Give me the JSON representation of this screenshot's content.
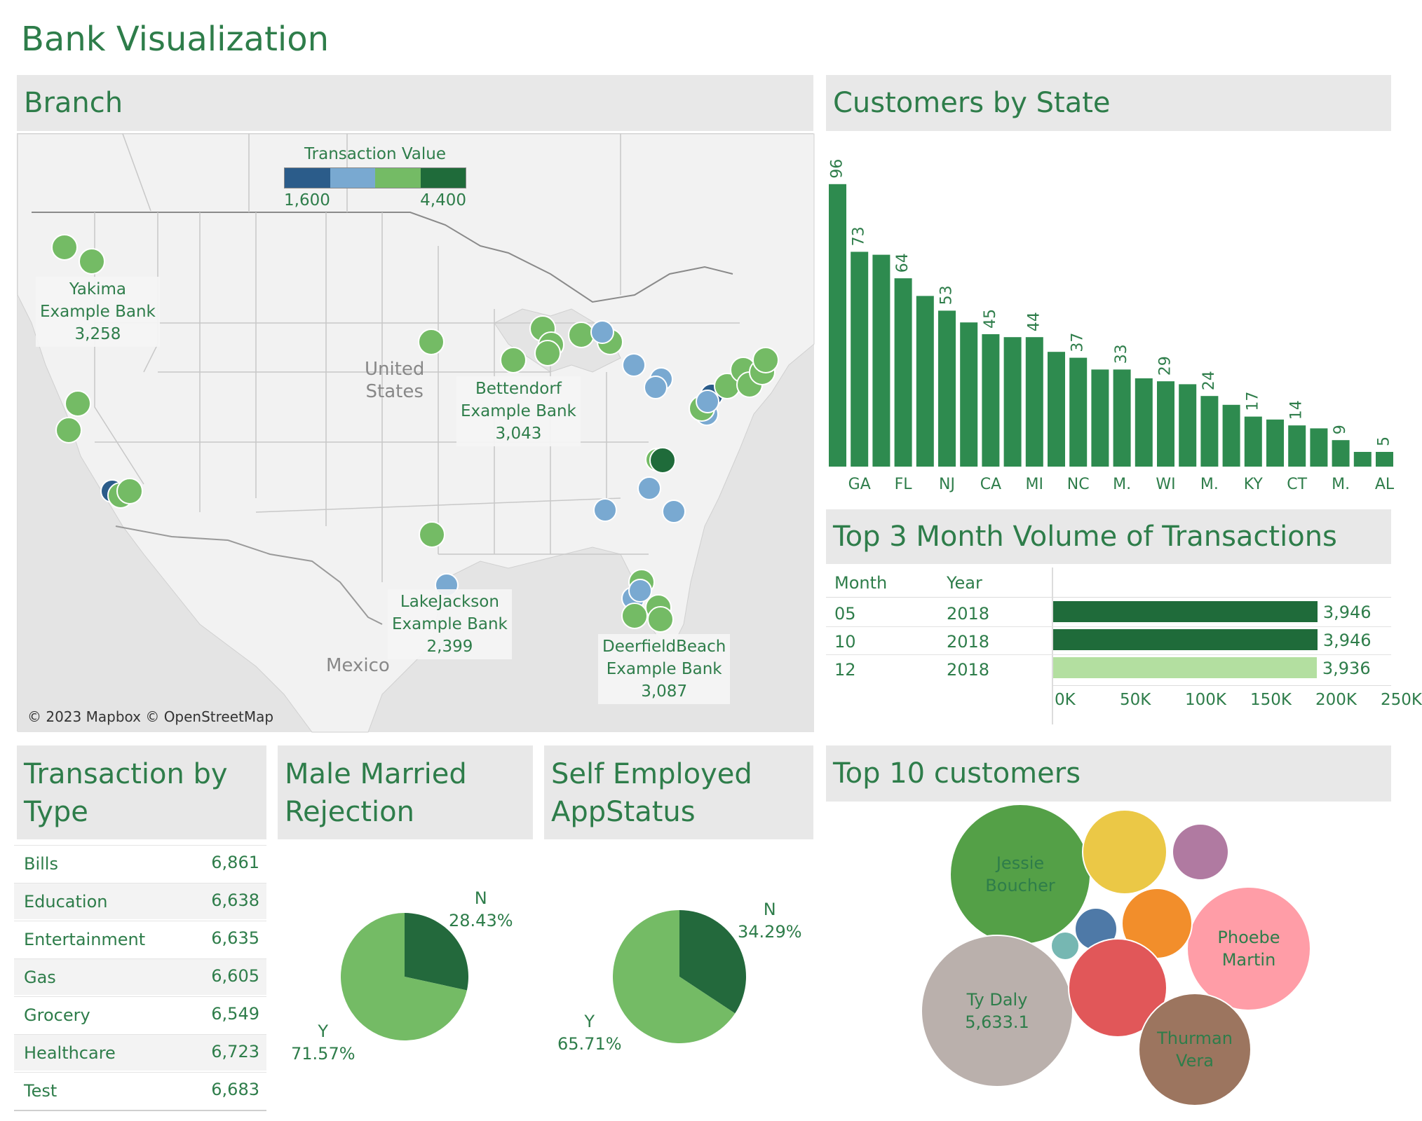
{
  "title": "Bank Visualization",
  "panels": {
    "branch": "Branch",
    "customers_by_state": "Customers by State",
    "top3": "Top 3 Month Volume of Transactions",
    "transaction_by_type": [
      "Transaction by",
      "Type"
    ],
    "male_married": [
      "Male Married",
      "Rejection"
    ],
    "self_employed": [
      "Self Employed",
      "AppStatus"
    ],
    "top10": "Top 10 customers"
  },
  "map": {
    "legend_title": "Transaction Value",
    "legend_min": "1,600",
    "legend_max": "4,400",
    "legend_colors": [
      "#2b5c8a",
      "#79a9d1",
      "#74bb65",
      "#1f6b3a"
    ],
    "country_labels": [
      "United",
      "States",
      "Mexico"
    ],
    "copyright": "© 2023 Mapbox © OpenStreetMap",
    "annotations": [
      {
        "name": "Yakima",
        "bank": "Example Bank",
        "value": "3,258"
      },
      {
        "name": "Bettendorf",
        "bank": "Example Bank",
        "value": "3,043"
      },
      {
        "name": "LakeJackson",
        "bank": "Example Bank",
        "value": "2,399"
      },
      {
        "name": "DeerfieldBeach",
        "bank": "Example Bank",
        "value": "3,087"
      }
    ]
  },
  "chart_data": [
    {
      "type": "bar",
      "title": "Customers by State",
      "values": [
        96,
        73,
        72,
        64,
        58,
        53,
        49,
        45,
        44,
        44,
        39,
        37,
        33,
        33,
        30,
        29,
        28,
        24,
        21,
        17,
        16,
        14,
        13,
        9,
        5,
        5
      ],
      "value_labels": {
        "0": "96",
        "1": "73",
        "3": "64",
        "5": "53",
        "7": "45",
        "9": "44",
        "11": "37",
        "13": "33",
        "15": "29",
        "17": "24",
        "19": "17",
        "21": "14",
        "23": "9",
        "25": "5"
      },
      "tick_labels": {
        "1": "GA",
        "3": "FL",
        "5": "NJ",
        "7": "CA",
        "9": "MI",
        "11": "NC",
        "13": "M.",
        "15": "WI",
        "17": "M.",
        "19": "KY",
        "21": "CT",
        "23": "M.",
        "25": "AL"
      },
      "color": "#2e8b4f"
    },
    {
      "type": "bar",
      "title": "Top 3 Month Volume of Transactions",
      "columns": [
        "Month",
        "Year"
      ],
      "rows": [
        {
          "month": "05",
          "year": "2018",
          "value": 3946,
          "label": "3,946",
          "color": "#1f6b3a"
        },
        {
          "month": "10",
          "year": "2018",
          "value": 3946,
          "label": "3,946",
          "color": "#1f6b3a"
        },
        {
          "month": "12",
          "year": "2018",
          "value": 3936,
          "label": "3,936",
          "color": "#b3dfa0"
        }
      ],
      "axis_ticks": [
        "0K",
        "50K",
        "100K",
        "150K",
        "200K",
        "250K"
      ]
    },
    {
      "type": "table",
      "title": "Transaction by Type",
      "rows": [
        {
          "label": "Bills",
          "value": "6,861"
        },
        {
          "label": "Education",
          "value": "6,638"
        },
        {
          "label": "Entertainment",
          "value": "6,635"
        },
        {
          "label": "Gas",
          "value": "6,605"
        },
        {
          "label": "Grocery",
          "value": "6,549"
        },
        {
          "label": "Healthcare",
          "value": "6,723"
        },
        {
          "label": "Test",
          "value": "6,683"
        }
      ]
    },
    {
      "type": "pie",
      "title": "Male Married Rejection",
      "slices": [
        {
          "name": "N",
          "value": 28.43,
          "label": "28.43%",
          "color": "#23693c"
        },
        {
          "name": "Y",
          "value": 71.57,
          "label": "71.57%",
          "color": "#74bb65"
        }
      ]
    },
    {
      "type": "pie",
      "title": "Self Employed AppStatus",
      "slices": [
        {
          "name": "N",
          "value": 34.29,
          "label": "34.29%",
          "color": "#23693c"
        },
        {
          "name": "Y",
          "value": 65.71,
          "label": "65.71%",
          "color": "#74bb65"
        }
      ]
    },
    {
      "type": "bubble",
      "title": "Top 10 customers",
      "bubbles": [
        {
          "label": [
            "Jessie",
            "Boucher"
          ],
          "color": "#54a047"
        },
        {
          "label": [],
          "color": "#ebc846"
        },
        {
          "label": [],
          "color": "#b07aa1"
        },
        {
          "label": [
            "Phoebe",
            "Martin"
          ],
          "color": "#ff9da7"
        },
        {
          "label": [],
          "color": "#f28e2b"
        },
        {
          "label": [],
          "color": "#4e79a7"
        },
        {
          "label": [],
          "color": "#76b7b2"
        },
        {
          "label": [
            "Ty Daly",
            "5,633.1"
          ],
          "color": "#bab0ac"
        },
        {
          "label": [],
          "color": "#e15759"
        },
        {
          "label": [
            "Thurman",
            "Vera"
          ],
          "color": "#9c755f"
        }
      ]
    }
  ]
}
